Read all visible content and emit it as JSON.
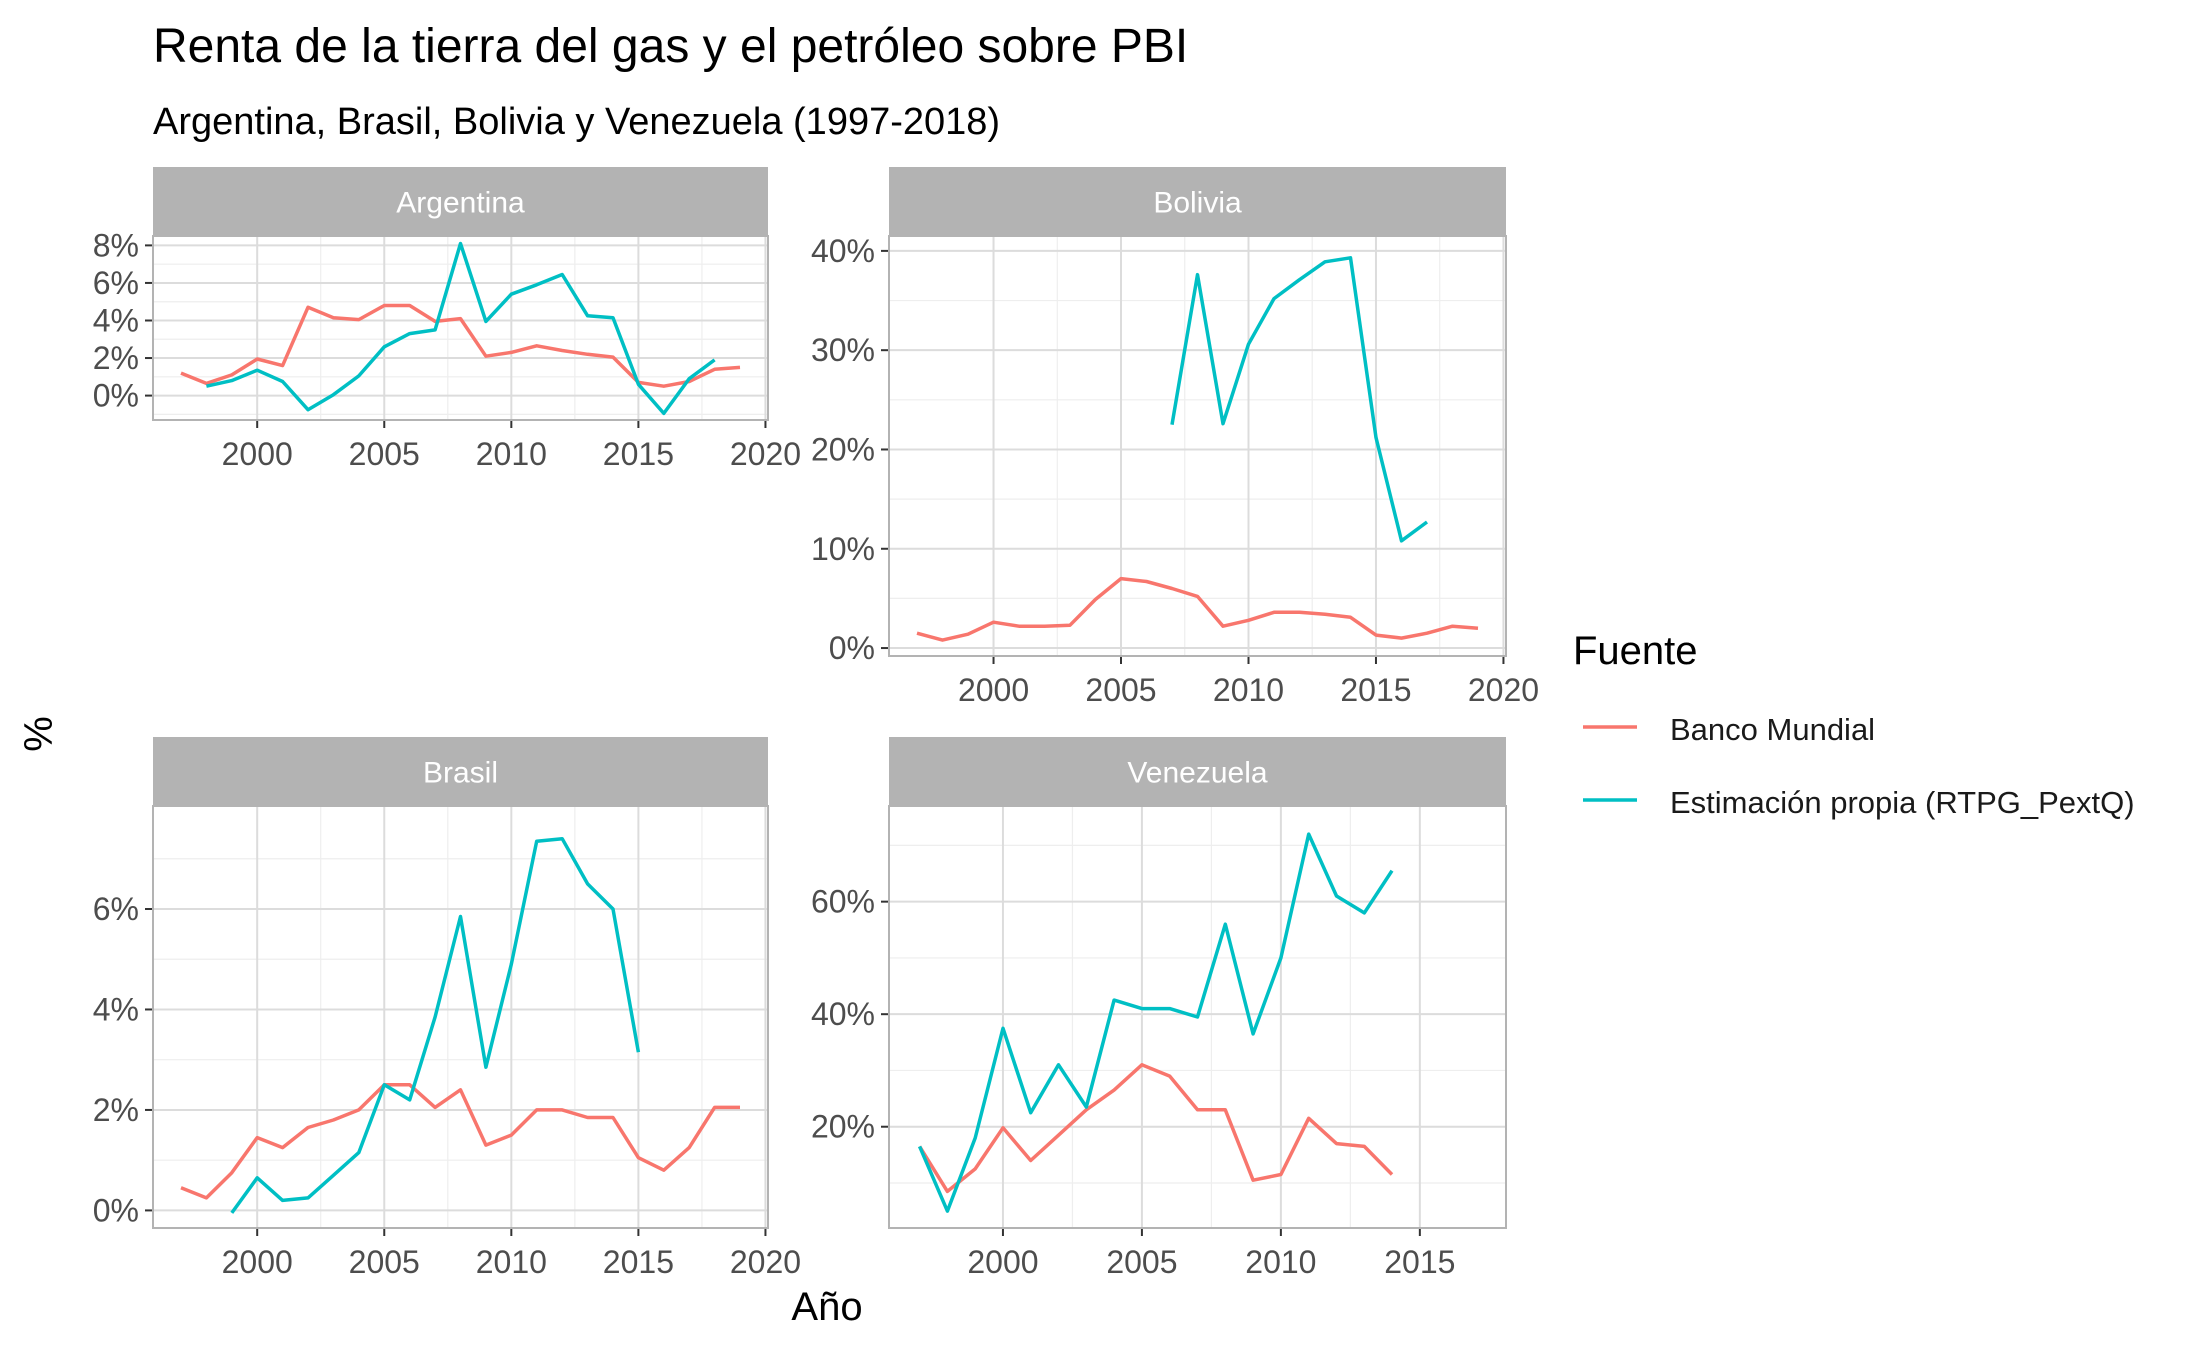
{
  "title": "Renta de la tierra del gas y el petróleo sobre PBI",
  "subtitle": "Argentina, Brasil, Bolivia y Venezuela (1997-2018)",
  "colors": {
    "banco_mundial": "#F8766D",
    "estimacion": "#00BFC4",
    "strip": "#b3b3b3",
    "grid": "#dcdcdc",
    "grid_minor": "#eeeeee",
    "panel_border": "#b3b3b3"
  },
  "chart_data": {
    "type": "line",
    "xlabel": "Año",
    "ylabel": "%",
    "legend": {
      "title": "Fuente",
      "position": "right",
      "entries": [
        "Banco Mundial",
        "Estimación propia (RTPG_PextQ)"
      ]
    },
    "grid": true,
    "panels": [
      {
        "name": "Argentina",
        "xlim": [
          1995.9,
          2020.1
        ],
        "ylim": [
          -1.3,
          8.5
        ],
        "x_ticks": [
          2000,
          2005,
          2010,
          2015,
          2020
        ],
        "y_ticks": [
          0,
          2,
          4,
          6,
          8
        ],
        "y_tick_labels": [
          "0%",
          "2%",
          "4%",
          "6%",
          "8%"
        ],
        "series": [
          {
            "name": "Banco Mundial",
            "x": [
              1997,
              1998,
              1999,
              2000,
              2001,
              2002,
              2003,
              2004,
              2005,
              2006,
              2007,
              2008,
              2009,
              2010,
              2011,
              2012,
              2013,
              2014,
              2015,
              2016,
              2017,
              2018,
              2019
            ],
            "y": [
              1.2,
              0.65,
              1.1,
              1.95,
              1.6,
              4.7,
              4.15,
              4.05,
              4.8,
              4.8,
              3.95,
              4.1,
              2.1,
              2.3,
              2.65,
              2.4,
              2.2,
              2.05,
              0.7,
              0.5,
              0.75,
              1.4,
              1.5
            ]
          },
          {
            "name": "Estimación propia (RTPG_PextQ)",
            "x": [
              1998,
              1999,
              2000,
              2001,
              2002,
              2003,
              2004,
              2005,
              2006,
              2007,
              2008,
              2009,
              2010,
              2011,
              2012,
              2013,
              2014,
              2015,
              2016,
              2017,
              2018
            ],
            "y": [
              0.5,
              0.8,
              1.35,
              0.75,
              -0.75,
              0.05,
              1.05,
              2.6,
              3.3,
              3.5,
              8.1,
              3.95,
              5.4,
              5.9,
              6.45,
              4.25,
              4.15,
              0.6,
              -0.95,
              0.9,
              1.9
            ]
          }
        ]
      },
      {
        "name": "Bolivia",
        "xlim": [
          1995.9,
          2020.1
        ],
        "ylim": [
          -0.8,
          41.5
        ],
        "x_ticks": [
          2000,
          2005,
          2010,
          2015,
          2020
        ],
        "y_ticks": [
          0,
          10,
          20,
          30,
          40
        ],
        "y_tick_labels": [
          "0%",
          "10%",
          "20%",
          "30%",
          "40%"
        ],
        "series": [
          {
            "name": "Banco Mundial",
            "x": [
              1997,
              1998,
              1999,
              2000,
              2001,
              2002,
              2003,
              2004,
              2005,
              2006,
              2007,
              2008,
              2009,
              2010,
              2011,
              2012,
              2013,
              2014,
              2015,
              2016,
              2017,
              2018,
              2019
            ],
            "y": [
              1.5,
              0.8,
              1.4,
              2.6,
              2.2,
              2.2,
              2.3,
              4.9,
              7.0,
              6.7,
              6.0,
              5.2,
              2.2,
              2.8,
              3.6,
              3.6,
              3.4,
              3.1,
              1.3,
              1.0,
              1.5,
              2.2,
              2.0
            ]
          },
          {
            "name": "Estimación propia (RTPG_PextQ)",
            "x": [
              2007,
              2008,
              2009,
              2010,
              2011,
              2012,
              2013,
              2014,
              2015,
              2016,
              2017
            ],
            "y": [
              22.5,
              37.6,
              22.6,
              30.6,
              35.2,
              37.1,
              38.9,
              39.3,
              21.2,
              10.8,
              12.7
            ]
          }
        ]
      },
      {
        "name": "Brasil",
        "xlim": [
          1995.9,
          2020.1
        ],
        "ylim": [
          -0.35,
          8.05
        ],
        "x_ticks": [
          2000,
          2005,
          2010,
          2015,
          2020
        ],
        "y_ticks": [
          0,
          2,
          4,
          6
        ],
        "y_tick_labels": [
          "0%",
          "2%",
          "4%",
          "6%"
        ],
        "series": [
          {
            "name": "Banco Mundial",
            "x": [
              1997,
              1998,
              1999,
              2000,
              2001,
              2002,
              2003,
              2004,
              2005,
              2006,
              2007,
              2008,
              2009,
              2010,
              2011,
              2012,
              2013,
              2014,
              2015,
              2016,
              2017,
              2018,
              2019
            ],
            "y": [
              0.45,
              0.25,
              0.75,
              1.45,
              1.25,
              1.65,
              1.8,
              2.0,
              2.5,
              2.5,
              2.05,
              2.4,
              1.3,
              1.5,
              2.0,
              2.0,
              1.85,
              1.85,
              1.05,
              0.8,
              1.25,
              2.05,
              2.05
            ]
          },
          {
            "name": "Estimación propia (RTPG_PextQ)",
            "x": [
              1999,
              2000,
              2001,
              2002,
              2003,
              2004,
              2005,
              2006,
              2007,
              2008,
              2009,
              2010,
              2011,
              2012,
              2013,
              2014,
              2015
            ],
            "y": [
              -0.05,
              0.65,
              0.2,
              0.25,
              0.7,
              1.15,
              2.5,
              2.2,
              3.85,
              5.85,
              2.85,
              4.9,
              7.35,
              7.4,
              6.5,
              6.0,
              3.15
            ]
          }
        ]
      },
      {
        "name": "Venezuela",
        "xlim": [
          1995.9,
          2018.1
        ],
        "ylim": [
          2,
          77
        ],
        "x_ticks": [
          2000,
          2005,
          2010,
          2015
        ],
        "y_ticks": [
          20,
          40,
          60
        ],
        "y_tick_labels": [
          "20%",
          "40%",
          "60%"
        ],
        "series": [
          {
            "name": "Banco Mundial",
            "x": [
              1997,
              1998,
              1999,
              2000,
              2001,
              2002,
              2003,
              2004,
              2005,
              2006,
              2007,
              2008,
              2009,
              2010,
              2011,
              2012,
              2013,
              2014
            ],
            "y": [
              16.5,
              8.5,
              12.5,
              19.8,
              14.0,
              18.5,
              23.0,
              26.5,
              31.0,
              29.0,
              23.0,
              23.0,
              10.5,
              11.5,
              21.5,
              17.0,
              16.5,
              11.5
            ]
          },
          {
            "name": "Estimación propia (RTPG_PextQ)",
            "x": [
              1997,
              1998,
              1999,
              2000,
              2001,
              2002,
              2003,
              2004,
              2005,
              2006,
              2007,
              2008,
              2009,
              2010,
              2011,
              2012,
              2013,
              2014
            ],
            "y": [
              16.5,
              5.0,
              18.0,
              37.5,
              22.5,
              31.0,
              23.5,
              42.5,
              41.0,
              41.0,
              39.5,
              56.0,
              36.5,
              50.0,
              72.0,
              61.0,
              58.0,
              65.5
            ]
          }
        ]
      }
    ]
  }
}
